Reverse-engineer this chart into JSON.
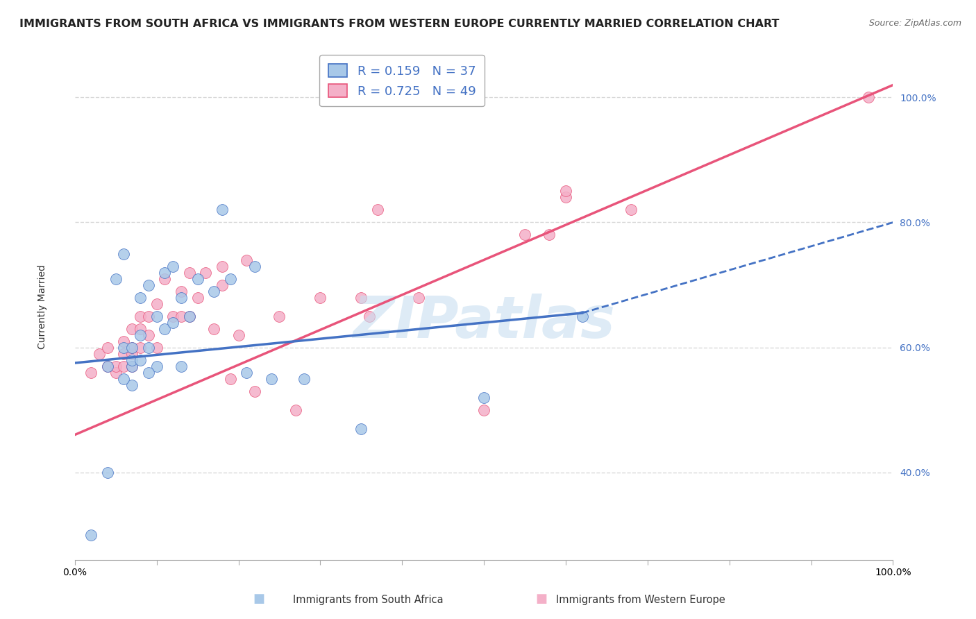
{
  "title": "IMMIGRANTS FROM SOUTH AFRICA VS IMMIGRANTS FROM WESTERN EUROPE CURRENTLY MARRIED CORRELATION CHART",
  "source": "Source: ZipAtlas.com",
  "ylabel": "Currently Married",
  "r_blue": 0.159,
  "n_blue": 37,
  "r_pink": 0.725,
  "n_pink": 49,
  "legend_label_blue": "Immigrants from South Africa",
  "legend_label_pink": "Immigrants from Western Europe",
  "ytick_labels": [
    "40.0%",
    "60.0%",
    "80.0%",
    "100.0%"
  ],
  "ytick_values": [
    0.4,
    0.6,
    0.8,
    1.0
  ],
  "xlim": [
    0.0,
    1.0
  ],
  "ylim": [
    0.26,
    1.07
  ],
  "blue_color": "#a8c8e8",
  "pink_color": "#f4b0c8",
  "line_blue": "#4472c4",
  "line_pink": "#e8547a",
  "background_color": "#ffffff",
  "grid_color": "#d8d8d8",
  "blue_scatter_x": [
    0.02,
    0.05,
    0.06,
    0.06,
    0.07,
    0.07,
    0.08,
    0.08,
    0.09,
    0.09,
    0.1,
    0.1,
    0.11,
    0.11,
    0.12,
    0.12,
    0.13,
    0.13,
    0.14,
    0.15,
    0.17,
    0.18,
    0.19,
    0.21,
    0.22,
    0.24,
    0.28,
    0.35,
    0.5,
    0.62,
    0.07,
    0.07,
    0.06,
    0.08,
    0.09,
    0.04,
    0.04
  ],
  "blue_scatter_y": [
    0.3,
    0.71,
    0.6,
    0.75,
    0.57,
    0.6,
    0.62,
    0.68,
    0.6,
    0.7,
    0.65,
    0.57,
    0.63,
    0.72,
    0.64,
    0.73,
    0.68,
    0.57,
    0.65,
    0.71,
    0.69,
    0.82,
    0.71,
    0.56,
    0.73,
    0.55,
    0.55,
    0.47,
    0.52,
    0.65,
    0.58,
    0.54,
    0.55,
    0.58,
    0.56,
    0.57,
    0.4
  ],
  "pink_scatter_x": [
    0.02,
    0.03,
    0.04,
    0.04,
    0.05,
    0.05,
    0.06,
    0.06,
    0.06,
    0.07,
    0.07,
    0.07,
    0.07,
    0.08,
    0.08,
    0.08,
    0.09,
    0.09,
    0.1,
    0.1,
    0.11,
    0.12,
    0.13,
    0.13,
    0.14,
    0.14,
    0.15,
    0.16,
    0.17,
    0.18,
    0.18,
    0.19,
    0.2,
    0.21,
    0.22,
    0.25,
    0.27,
    0.3,
    0.35,
    0.36,
    0.37,
    0.42,
    0.5,
    0.55,
    0.58,
    0.6,
    0.6,
    0.68,
    0.97
  ],
  "pink_scatter_y": [
    0.56,
    0.59,
    0.57,
    0.6,
    0.56,
    0.57,
    0.57,
    0.59,
    0.61,
    0.57,
    0.59,
    0.6,
    0.63,
    0.6,
    0.63,
    0.65,
    0.62,
    0.65,
    0.67,
    0.6,
    0.71,
    0.65,
    0.65,
    0.69,
    0.65,
    0.72,
    0.68,
    0.72,
    0.63,
    0.73,
    0.7,
    0.55,
    0.62,
    0.74,
    0.53,
    0.65,
    0.5,
    0.68,
    0.68,
    0.65,
    0.82,
    0.68,
    0.5,
    0.78,
    0.78,
    0.84,
    0.85,
    0.82,
    1.0
  ],
  "blue_line_x0": 0.0,
  "blue_line_y0": 0.575,
  "blue_line_x1": 0.62,
  "blue_line_y1": 0.655,
  "blue_line_x1_dash": 1.0,
  "blue_line_y1_dash": 0.8,
  "pink_line_x0": 0.0,
  "pink_line_y0": 0.46,
  "pink_line_x1": 1.0,
  "pink_line_y1": 1.02,
  "title_fontsize": 11.5,
  "source_fontsize": 9,
  "axis_label_fontsize": 10,
  "legend_fontsize": 13,
  "tick_fontsize": 10,
  "watermark_text": "ZIPatlas",
  "watermark_fontsize": 60
}
